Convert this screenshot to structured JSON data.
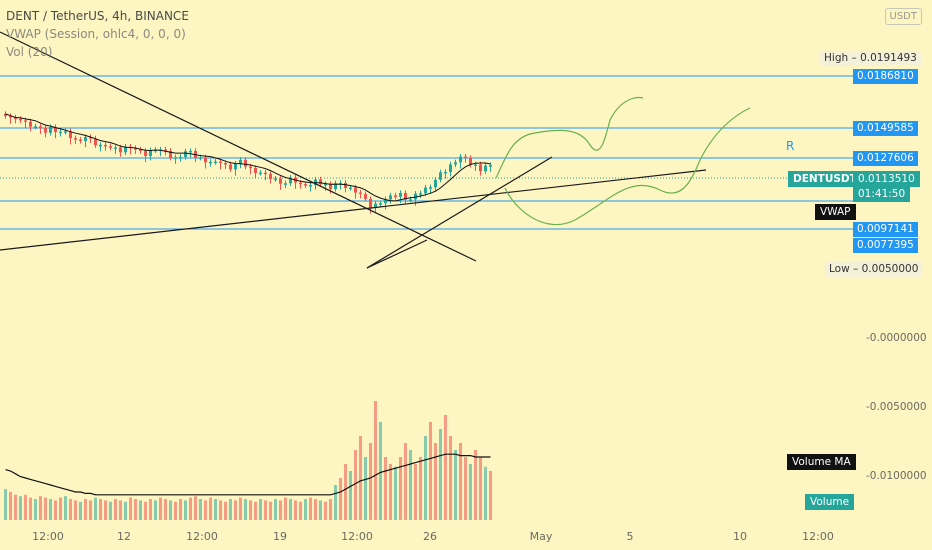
{
  "legend": {
    "title": "DENT / TetherUS, 4h, BINANCE",
    "vwap": "VWAP (Session, ohlc4, 0, 0, 0)",
    "vol": "Vol (20)"
  },
  "currency_label": "USDT",
  "colors": {
    "background": "#fdf6c3",
    "up": "#26a69a",
    "down": "#ef5350",
    "level": "#2196f3",
    "trend": "#1a1a1a",
    "projection": "#6ab04c"
  },
  "chart_data": {
    "type": "candlestick",
    "x_labels": [
      "12:00",
      "12",
      "12:00",
      "19",
      "12:00",
      "26",
      "May",
      "5",
      "10",
      "12:00"
    ],
    "y_axis_labels": [
      "-0.0000000",
      "-0.0050000",
      "-0.0100000"
    ],
    "price_levels": [
      {
        "label": "High",
        "value": "0.0191493"
      },
      {
        "label": "",
        "value": "0.0186810"
      },
      {
        "label": "",
        "value": "0.0149585"
      },
      {
        "label": "",
        "value": "0.0127606"
      },
      {
        "label": "",
        "value": "0.0097141"
      },
      {
        "label": "",
        "value": "0.0077395"
      },
      {
        "label": "Low",
        "value": "0.0050000"
      }
    ],
    "last_price": {
      "symbol": "DENTUSDT",
      "value": "0.0113510",
      "countdown": "01:41:50"
    },
    "indicator_labels": {
      "vwap": "VWAP",
      "volume_ma": "Volume MA",
      "volume": "Volume"
    },
    "annotations": [
      "R"
    ],
    "price_path": [
      95,
      93,
      91,
      92,
      90,
      89,
      88,
      86,
      85,
      87,
      86,
      85,
      84,
      82,
      80,
      81,
      82,
      80,
      78,
      77,
      78,
      76,
      75,
      74,
      76,
      77,
      75,
      73,
      72,
      74,
      76,
      75,
      73,
      71,
      70,
      72,
      74,
      73,
      71,
      70,
      69,
      68,
      67,
      68,
      66,
      65,
      67,
      68,
      66,
      64,
      63,
      62,
      60,
      59,
      58,
      57,
      56,
      58,
      57,
      55,
      56,
      55,
      57,
      56,
      55,
      54,
      56,
      55,
      54,
      53,
      52,
      50,
      46,
      43,
      44,
      46,
      47,
      48,
      49,
      50,
      48,
      47,
      49,
      51,
      53,
      55,
      58,
      61,
      63,
      66,
      69,
      71,
      69,
      67,
      66,
      64,
      66,
      65
    ],
    "volume_path": [
      22,
      20,
      18,
      17,
      18,
      16,
      15,
      17,
      16,
      15,
      14,
      16,
      17,
      15,
      14,
      13,
      15,
      14,
      16,
      15,
      14,
      13,
      15,
      14,
      13,
      16,
      15,
      14,
      13,
      15,
      14,
      16,
      15,
      14,
      13,
      15,
      14,
      16,
      17,
      15,
      14,
      16,
      15,
      14,
      13,
      15,
      14,
      16,
      15,
      14,
      13,
      15,
      14,
      13,
      15,
      14,
      16,
      15,
      14,
      13,
      15,
      16,
      15,
      14,
      13,
      15,
      25,
      30,
      40,
      35,
      50,
      60,
      45,
      55,
      85,
      70,
      45,
      40,
      38,
      45,
      55,
      50,
      40,
      45,
      60,
      70,
      55,
      65,
      75,
      60,
      50,
      55,
      45,
      40,
      50,
      45,
      38,
      35
    ],
    "volume_ma_path": [
      36,
      35,
      33,
      31,
      30,
      29,
      28,
      27,
      26,
      25,
      24,
      23,
      22,
      21,
      20,
      20,
      19,
      19,
      18,
      18,
      18,
      18,
      18,
      18,
      18,
      18,
      18,
      18,
      18,
      18,
      18,
      18,
      18,
      18,
      18,
      18,
      18,
      18,
      18,
      18,
      18,
      18,
      18,
      18,
      18,
      18,
      18,
      18,
      18,
      18,
      18,
      18,
      18,
      18,
      18,
      18,
      18,
      18,
      18,
      18,
      18,
      18,
      18,
      18,
      18,
      18,
      19,
      20,
      22,
      24,
      26,
      28,
      29,
      30,
      32,
      34,
      35,
      36,
      37,
      38,
      39,
      40,
      41,
      42,
      43,
      44,
      45,
      46,
      47,
      47,
      47,
      46,
      46,
      46,
      45,
      45,
      45,
      45
    ]
  }
}
